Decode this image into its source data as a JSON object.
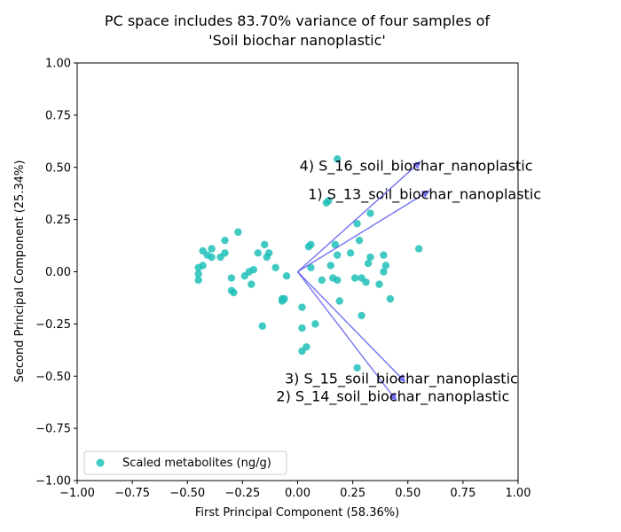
{
  "chart_data": {
    "type": "scatter",
    "title_lines": [
      "PC space includes 83.70% variance of four samples of",
      "'Soil biochar nanoplastic'"
    ],
    "xlabel": "First Principal Component (58.36%)",
    "ylabel": "Second Principal Component (25.34%)",
    "xlim": [
      -1.0,
      1.0
    ],
    "ylim": [
      -1.0,
      1.0
    ],
    "xticks": [
      "−1.00",
      "−0.75",
      "−0.50",
      "−0.25",
      "0.00",
      "0.25",
      "0.50",
      "0.75",
      "1.00"
    ],
    "yticks": [
      "−1.00",
      "−0.75",
      "−0.50",
      "−0.25",
      "0.00",
      "0.25",
      "0.50",
      "0.75",
      "1.00"
    ],
    "grid": false,
    "legend": {
      "position": "lower-left",
      "entries": [
        "Scaled metabolites (ng/g)"
      ]
    },
    "colors": {
      "points": "#20c0b8",
      "vectors": "#6464f0"
    },
    "series": [
      {
        "name": "Scaled metabolites (ng/g)",
        "points": [
          [
            -0.45,
            0.02
          ],
          [
            -0.45,
            -0.01
          ],
          [
            -0.45,
            -0.04
          ],
          [
            -0.43,
            0.1
          ],
          [
            -0.43,
            0.03
          ],
          [
            -0.41,
            0.08
          ],
          [
            -0.39,
            0.11
          ],
          [
            -0.39,
            0.07
          ],
          [
            -0.35,
            0.07
          ],
          [
            -0.33,
            0.15
          ],
          [
            -0.33,
            0.09
          ],
          [
            -0.3,
            -0.03
          ],
          [
            -0.3,
            -0.09
          ],
          [
            -0.29,
            -0.1
          ],
          [
            -0.27,
            0.19
          ],
          [
            -0.24,
            -0.02
          ],
          [
            -0.22,
            0.0
          ],
          [
            -0.21,
            -0.06
          ],
          [
            -0.2,
            0.01
          ],
          [
            -0.18,
            0.09
          ],
          [
            -0.16,
            -0.26
          ],
          [
            -0.15,
            0.13
          ],
          [
            -0.14,
            0.07
          ],
          [
            -0.13,
            0.09
          ],
          [
            -0.1,
            0.02
          ],
          [
            -0.07,
            -0.14
          ],
          [
            -0.07,
            -0.13
          ],
          [
            -0.06,
            -0.13
          ],
          [
            -0.05,
            -0.02
          ],
          [
            0.02,
            -0.17
          ],
          [
            0.02,
            -0.27
          ],
          [
            0.02,
            -0.38
          ],
          [
            0.04,
            -0.36
          ],
          [
            0.05,
            0.12
          ],
          [
            0.06,
            0.13
          ],
          [
            0.06,
            0.02
          ],
          [
            0.08,
            -0.25
          ],
          [
            0.11,
            -0.04
          ],
          [
            0.13,
            0.33
          ],
          [
            0.14,
            0.34
          ],
          [
            0.15,
            0.03
          ],
          [
            0.16,
            -0.03
          ],
          [
            0.17,
            0.13
          ],
          [
            0.18,
            0.54
          ],
          [
            0.18,
            0.08
          ],
          [
            0.18,
            -0.04
          ],
          [
            0.19,
            -0.14
          ],
          [
            0.24,
            0.09
          ],
          [
            0.26,
            -0.03
          ],
          [
            0.27,
            0.23
          ],
          [
            0.27,
            -0.46
          ],
          [
            0.28,
            0.15
          ],
          [
            0.29,
            -0.21
          ],
          [
            0.29,
            -0.03
          ],
          [
            0.31,
            -0.05
          ],
          [
            0.32,
            0.04
          ],
          [
            0.33,
            0.28
          ],
          [
            0.33,
            0.07
          ],
          [
            0.37,
            -0.06
          ],
          [
            0.39,
            0.08
          ],
          [
            0.39,
            0.0
          ],
          [
            0.4,
            0.03
          ],
          [
            0.42,
            -0.13
          ],
          [
            0.55,
            0.11
          ]
        ]
      }
    ],
    "loading_vectors": [
      {
        "label": "1) S_13_soil_biochar_nanoplastic",
        "x": 0.6,
        "y": 0.39
      },
      {
        "label": "2) S_14_soil_biochar_nanoplastic",
        "x": 0.45,
        "y": -0.62
      },
      {
        "label": "3) S_15_soil_biochar_nanoplastic",
        "x": 0.49,
        "y": -0.53
      },
      {
        "label": "4) S_16_soil_biochar_nanoplastic",
        "x": 0.56,
        "y": 0.53
      }
    ]
  }
}
